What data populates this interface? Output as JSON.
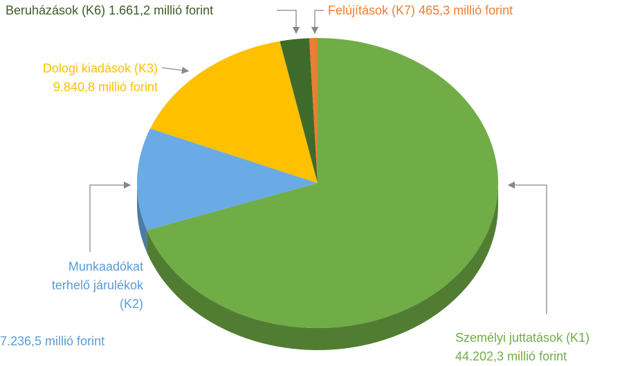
{
  "chart_data": {
    "type": "pie",
    "categories": [
      "Személyi juttatások (K1)",
      "Munkaadókat terhelő járulékok (K2)",
      "Dologi kiadások (K3)",
      "Beruházások (K6)",
      "Felújítások (K7)"
    ],
    "values": [
      44202.3,
      7236.5,
      9840.8,
      1661.2,
      465.3
    ],
    "value_labels": [
      "44.202,3 millió forint",
      "7.236,5 millió forint",
      "9.840,8 millió forint",
      "1.661,2 millió forint",
      "465,3 millió forint"
    ],
    "colors": [
      "#70ad47",
      "#6aabe6",
      "#ffc000",
      "#3f6b2a",
      "#ed7d31"
    ],
    "label_colors": [
      "#70ad47",
      "#5b9bd5",
      "#ffc000",
      "#3d5a26",
      "#ed7d31"
    ]
  }
}
